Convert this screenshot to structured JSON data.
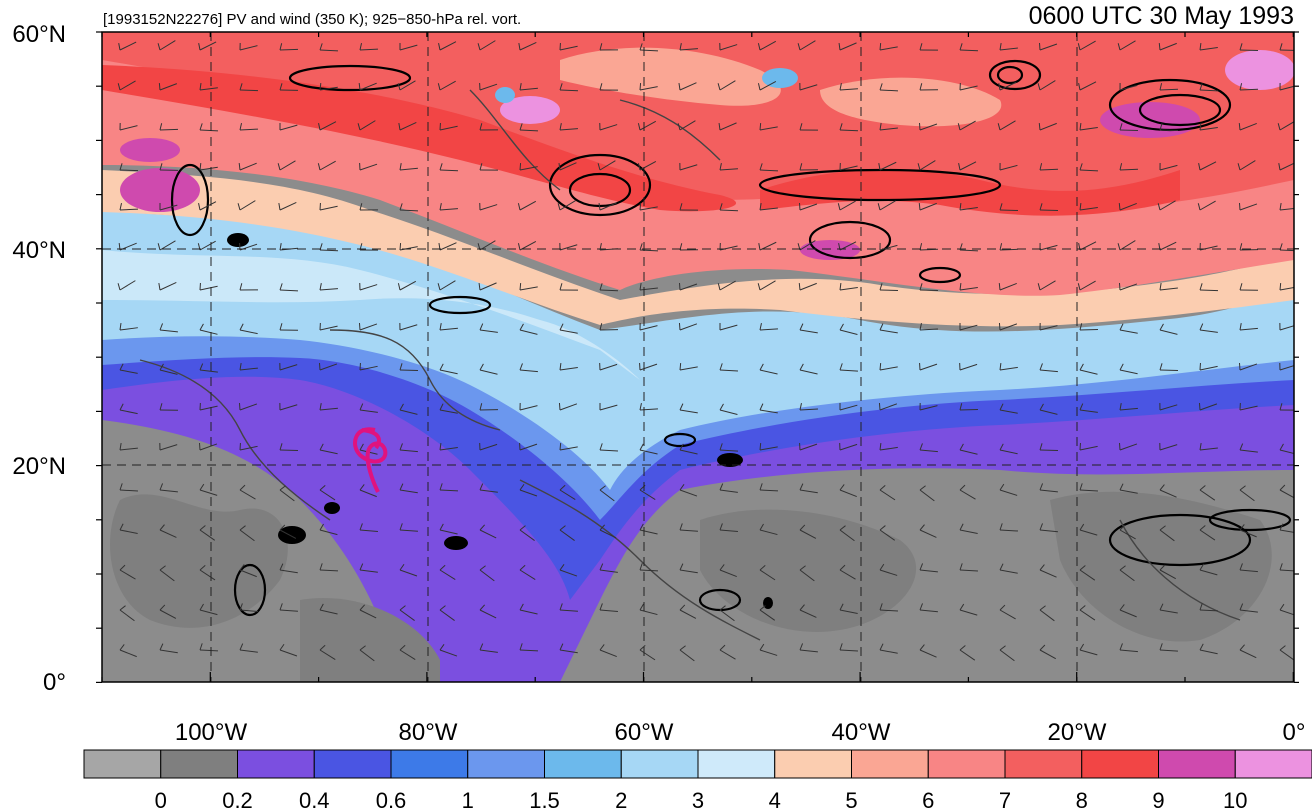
{
  "header": {
    "left_title": "[1993152N22276] PV and wind (350 K); 925−850-hPa rel. vort.",
    "right_title": "0600 UTC 30 May 1993"
  },
  "lat_labels": [
    "60°N",
    "40°N",
    "20°N",
    "0°"
  ],
  "lon_labels": [
    "100°W",
    "80°W",
    "60°W",
    "40°W",
    "20°W",
    "0°"
  ],
  "colorbar": {
    "labels": [
      "0",
      "0.2",
      "0.4",
      "0.6",
      "1",
      "1.5",
      "2",
      "3",
      "4",
      "5",
      "6",
      "7",
      "8",
      "9",
      "10"
    ],
    "colors": [
      "#a6a6a6",
      "#7f7f7f",
      "#7b4fe0",
      "#4a55e3",
      "#3d7ae8",
      "#6b97ee",
      "#6cb9ec",
      "#a6d7f5",
      "#cfeafa",
      "#fbcdb0",
      "#faa694",
      "#f88585",
      "#f35f5f",
      "#f24545",
      "#cf4aae",
      "#ec92e0"
    ]
  },
  "storm_symbol": {
    "color": "#e0137e"
  }
}
